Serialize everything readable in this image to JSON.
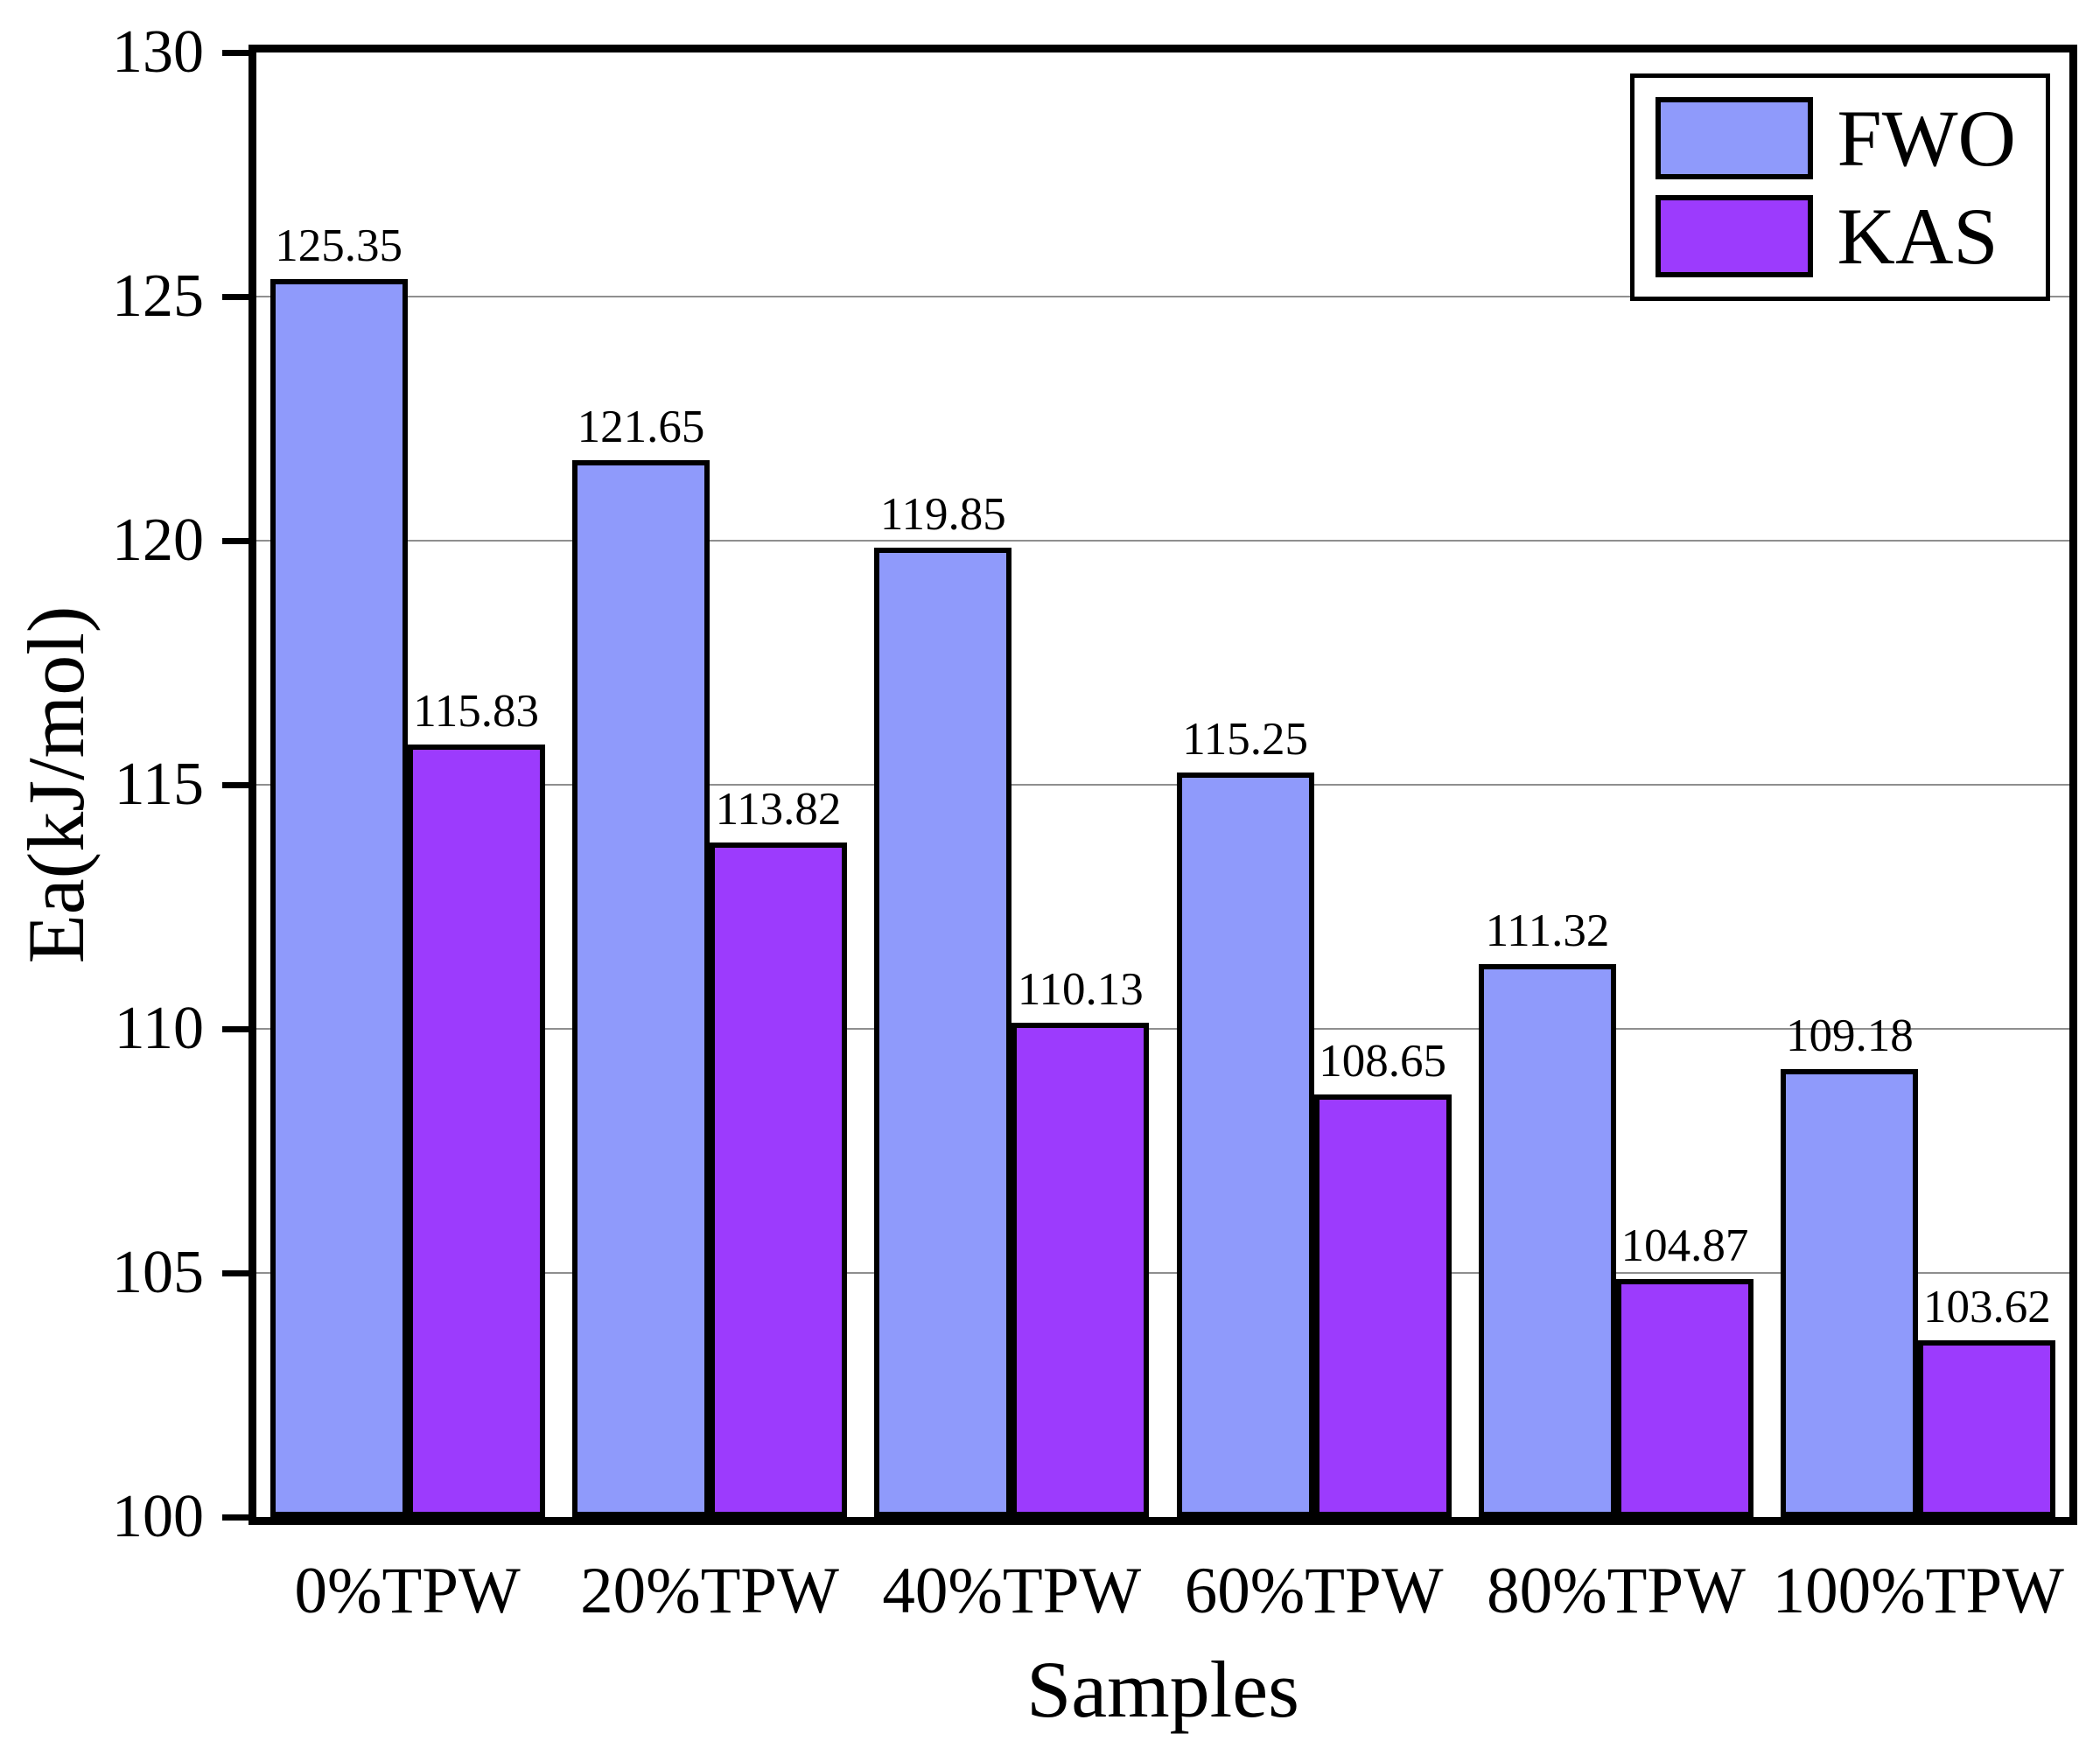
{
  "chart_data": {
    "type": "bar",
    "title": "",
    "xlabel": "Samples",
    "ylabel": "Ea(kJ/mol)",
    "categories": [
      "0%TPW",
      "20%TPW",
      "40%TPW",
      "60%TPW",
      "80%TPW",
      "100%TPW"
    ],
    "series": [
      {
        "name": "FWO",
        "color": "#8f9afb",
        "values": [
          125.35,
          121.65,
          119.85,
          115.25,
          111.32,
          109.18
        ]
      },
      {
        "name": "KAS",
        "color": "#9c3bfd",
        "values": [
          115.83,
          113.82,
          110.13,
          108.65,
          104.87,
          103.62
        ]
      }
    ],
    "ylim": [
      100,
      130
    ],
    "yticks": [
      100,
      105,
      110,
      115,
      120,
      125,
      130
    ],
    "grid": true,
    "gridline_color": "#8f8f8f",
    "axis_color": "#000000",
    "bar_border_color": "#000000",
    "legend_position": "top-right",
    "value_labels": true
  }
}
